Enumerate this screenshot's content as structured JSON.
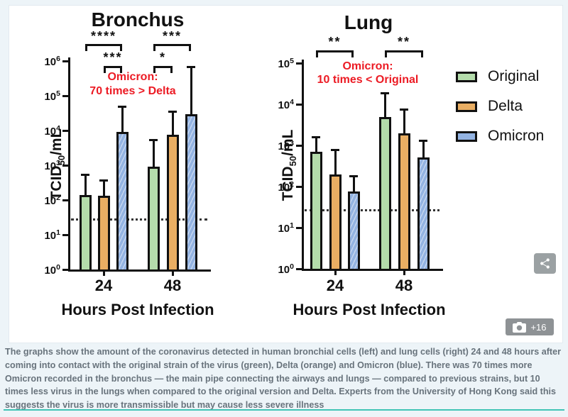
{
  "figure": {
    "legend": {
      "items": [
        {
          "label": "Original",
          "color": "#b4dcab"
        },
        {
          "label": "Delta",
          "color": "#e9ae63"
        },
        {
          "label": "Omicron",
          "color": "#93b3e2"
        }
      ]
    },
    "share_button": {
      "icon": "share-icon"
    },
    "photo_badge": {
      "icon": "camera-icon",
      "count_label": "+16"
    }
  },
  "caption": {
    "text": "The graphs show the amount of the coronavirus detected in human bronchial cells (left) and lung cells (right) 24 and 48 hours after coming into contact with the original strain of the virus (green), Delta (orange) and Omicron (blue). There was 70 times more Omicron recorded in the bronchus — the main pipe connecting the airways and lungs — compared to previous strains, but 10 times less virus in the lungs when compared to the original version and Delta. Experts from the University of Hong Kong said this suggests the virus is more transmissible but may cause less severe illness"
  },
  "colors": {
    "axis": "#111111",
    "annotation_red": "#ec1b24",
    "divider_teal": "#41c4b5",
    "page_background": "#edf4f8",
    "badge_grey": "#9ba1a3"
  },
  "chart_data": [
    {
      "type": "bar",
      "title": "Bronchus",
      "xlabel": "Hours Post Infection",
      "ylabel": {
        "pre": "TCID",
        "sub": "50",
        "post": "/mL"
      },
      "yscale": "log",
      "ytick_base": "10",
      "ylim_exponents": [
        0,
        6
      ],
      "grid": false,
      "categories": [
        "24",
        "48"
      ],
      "series": [
        {
          "name": "Original",
          "color": "#b4dcab",
          "hatch": false,
          "values": [
            140,
            900
          ],
          "errors_upper": [
            550,
            5500
          ]
        },
        {
          "name": "Delta",
          "color": "#e9ae63",
          "hatch": false,
          "values": [
            130,
            7500
          ],
          "errors_upper": [
            380,
            35000
          ]
        },
        {
          "name": "Omicron",
          "color": "#93b3e2",
          "hatch": true,
          "values": [
            9000,
            30000
          ],
          "errors_upper": [
            50000,
            700000
          ]
        }
      ],
      "detection_limit": 28,
      "annotation_note": {
        "lines": [
          "Omicron:",
          "70 times > Delta"
        ],
        "color": "#ec1b24"
      },
      "significance": [
        {
          "stars": "****",
          "group": 0,
          "from_series": 0,
          "to_series": 2,
          "row": "outer"
        },
        {
          "stars": "***",
          "group": 0,
          "from_series": 1,
          "to_series": 2,
          "row": "inner"
        },
        {
          "stars": "***",
          "group": 1,
          "from_series": 0,
          "to_series": 2,
          "row": "outer"
        },
        {
          "stars": "*",
          "group": 1,
          "from_series": 0,
          "to_series": 1,
          "row": "inner"
        }
      ]
    },
    {
      "type": "bar",
      "title": "Lung",
      "xlabel": "Hours Post Infection",
      "ylabel": {
        "pre": "TCID",
        "sub": "50",
        "post": "/mL"
      },
      "yscale": "log",
      "ytick_base": "10",
      "ylim_exponents": [
        0,
        5
      ],
      "grid": false,
      "categories": [
        "24",
        "48"
      ],
      "series": [
        {
          "name": "Original",
          "color": "#b4dcab",
          "hatch": false,
          "values": [
            700,
            4800
          ],
          "errors_upper": [
            1600,
            19000
          ]
        },
        {
          "name": "Delta",
          "color": "#e9ae63",
          "hatch": false,
          "values": [
            200,
            2000
          ],
          "errors_upper": [
            800,
            7500
          ]
        },
        {
          "name": "Omicron",
          "color": "#93b3e2",
          "hatch": true,
          "values": [
            75,
            500
          ],
          "errors_upper": [
            180,
            1300
          ]
        }
      ],
      "detection_limit": 27,
      "annotation_note": {
        "lines": [
          "Omicron:",
          "10 times < Original"
        ],
        "color": "#ec1b24"
      },
      "significance": [
        {
          "stars": "**",
          "group": 0,
          "from_series": 0,
          "to_series": 2,
          "row": "outer"
        },
        {
          "stars": "**",
          "group": 1,
          "from_series": 0,
          "to_series": 2,
          "row": "outer"
        }
      ]
    }
  ]
}
